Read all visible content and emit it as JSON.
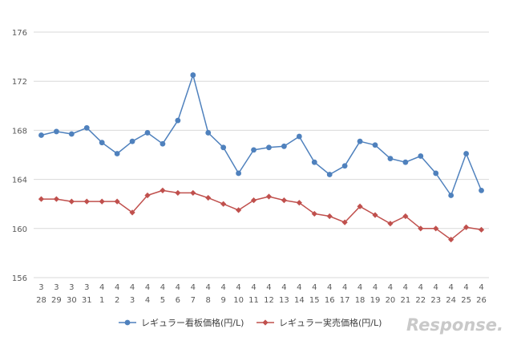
{
  "chart_data": {
    "type": "line",
    "title": "",
    "xlabel": "",
    "ylabel": "",
    "ylim": [
      156,
      176
    ],
    "yticks": [
      156,
      160,
      164,
      168,
      172,
      176
    ],
    "grid": true,
    "legend": "bottom",
    "categories": [
      {
        "month": "3",
        "day": "28"
      },
      {
        "month": "3",
        "day": "29"
      },
      {
        "month": "3",
        "day": "30"
      },
      {
        "month": "3",
        "day": "31"
      },
      {
        "month": "4",
        "day": "1"
      },
      {
        "month": "4",
        "day": "2"
      },
      {
        "month": "4",
        "day": "3"
      },
      {
        "month": "4",
        "day": "4"
      },
      {
        "month": "4",
        "day": "5"
      },
      {
        "month": "4",
        "day": "6"
      },
      {
        "month": "4",
        "day": "7"
      },
      {
        "month": "4",
        "day": "8"
      },
      {
        "month": "4",
        "day": "9"
      },
      {
        "month": "4",
        "day": "10"
      },
      {
        "month": "4",
        "day": "11"
      },
      {
        "month": "4",
        "day": "12"
      },
      {
        "month": "4",
        "day": "13"
      },
      {
        "month": "4",
        "day": "14"
      },
      {
        "month": "4",
        "day": "15"
      },
      {
        "month": "4",
        "day": "16"
      },
      {
        "month": "4",
        "day": "17"
      },
      {
        "month": "4",
        "day": "18"
      },
      {
        "month": "4",
        "day": "19"
      },
      {
        "month": "4",
        "day": "20"
      },
      {
        "month": "4",
        "day": "21"
      },
      {
        "month": "4",
        "day": "22"
      },
      {
        "month": "4",
        "day": "23"
      },
      {
        "month": "4",
        "day": "24"
      },
      {
        "month": "4",
        "day": "25"
      },
      {
        "month": "4",
        "day": "26"
      }
    ],
    "series": [
      {
        "name": "レギュラー看板価格(円/L)",
        "color": "#4f81bd",
        "marker": "circle",
        "values": [
          167.6,
          167.9,
          167.7,
          168.2,
          167.0,
          166.1,
          167.1,
          167.8,
          166.9,
          168.8,
          172.5,
          167.8,
          166.6,
          164.5,
          166.4,
          166.6,
          166.7,
          167.5,
          165.4,
          164.4,
          165.1,
          167.1,
          166.8,
          165.7,
          165.4,
          165.9,
          164.5,
          162.7,
          166.1,
          163.1
        ]
      },
      {
        "name": "レギュラー実売価格(円/L)",
        "color": "#c0504d",
        "marker": "diamond",
        "values": [
          162.4,
          162.4,
          162.2,
          162.2,
          162.2,
          162.2,
          161.3,
          162.7,
          163.1,
          162.9,
          162.9,
          162.5,
          162.0,
          161.5,
          162.3,
          162.6,
          162.3,
          162.1,
          161.2,
          161.0,
          160.5,
          161.8,
          161.1,
          160.4,
          161.0,
          160.0,
          160.0,
          159.1,
          160.1,
          159.9
        ]
      }
    ]
  },
  "watermark": "Response."
}
